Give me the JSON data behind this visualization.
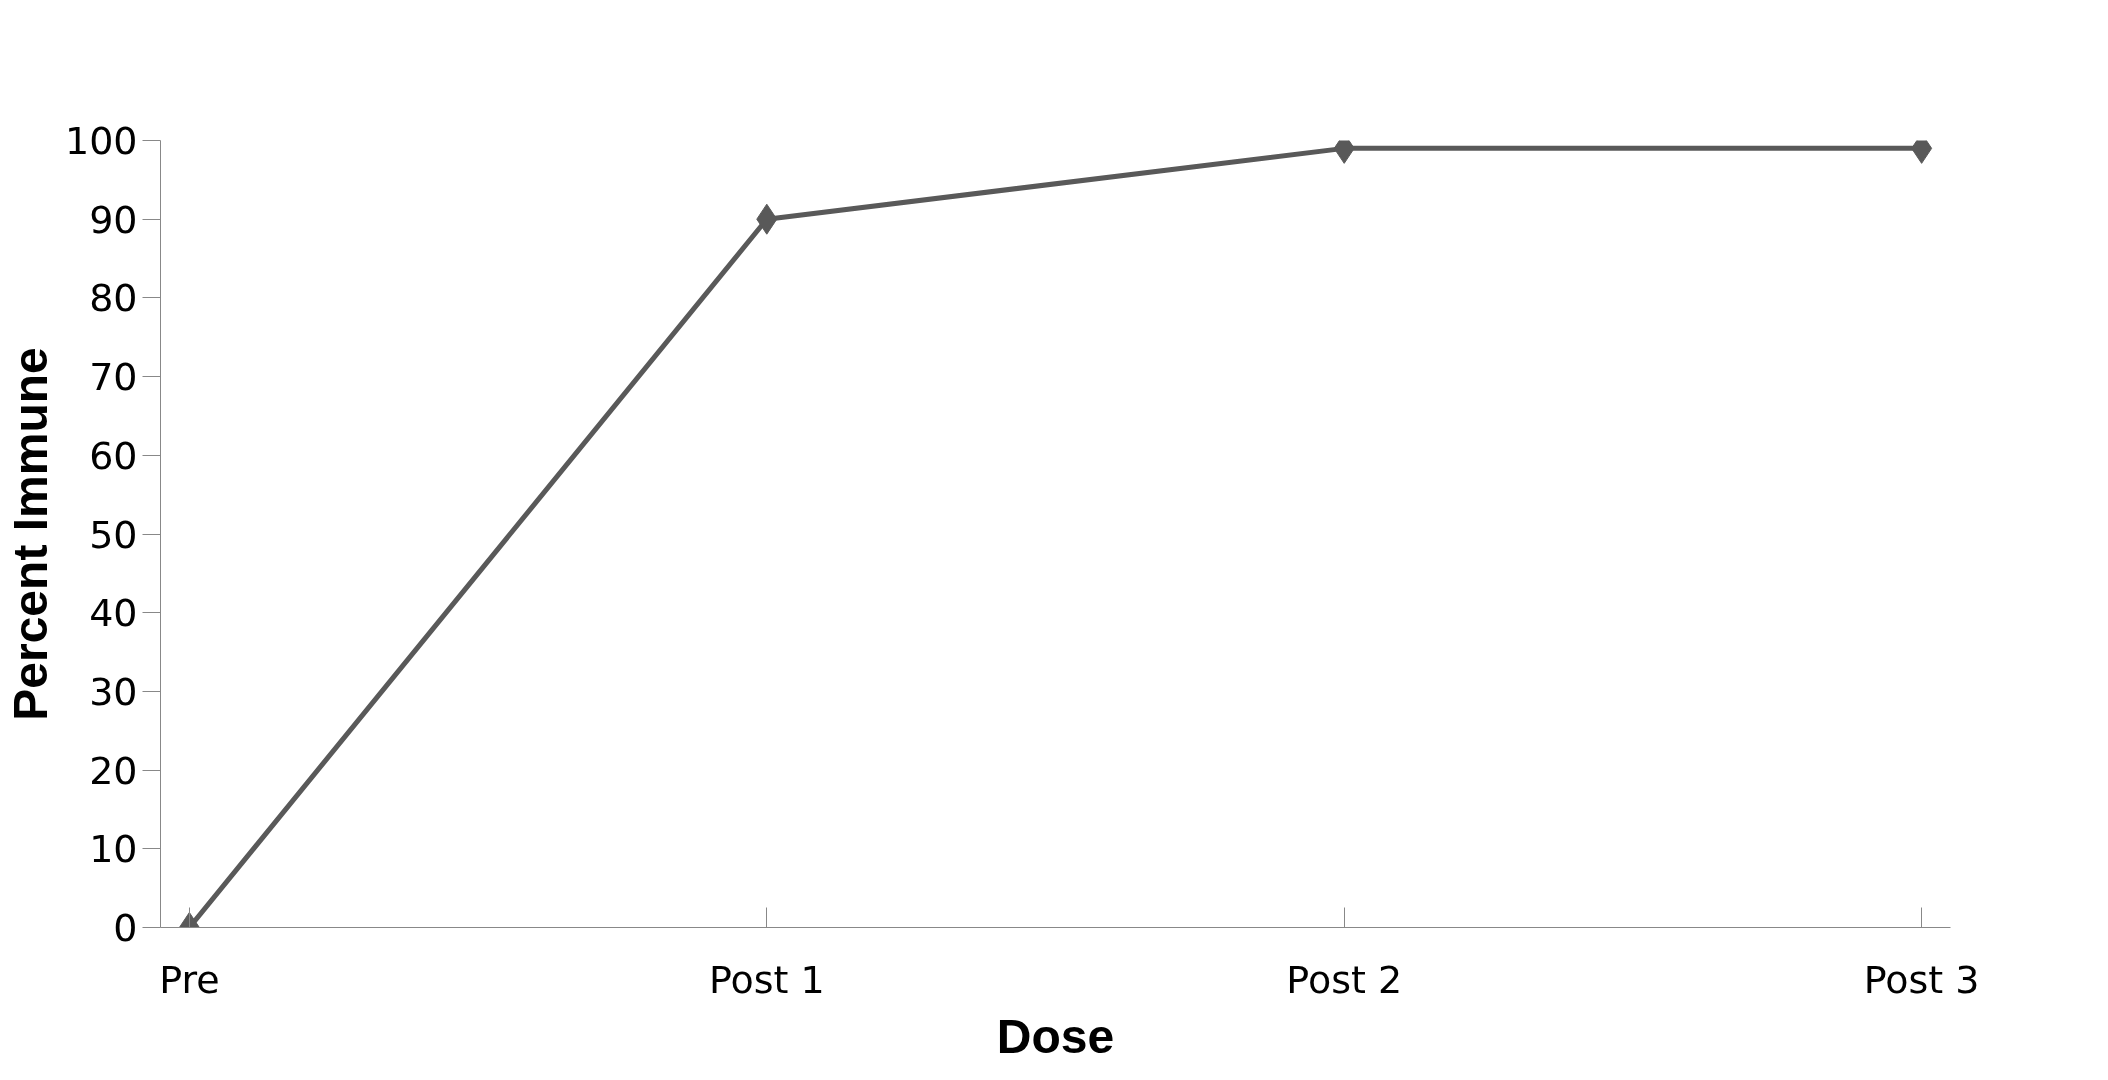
{
  "chart_data": {
    "type": "line",
    "xlabel": "Dose",
    "ylabel": "Percent Immune",
    "categories": [
      "Pre",
      "Post 1",
      "Post 2",
      "Post 3"
    ],
    "series": [
      {
        "color": "#595959",
        "values": [
          0,
          90,
          99,
          99
        ]
      }
    ],
    "ylim": [
      0,
      100
    ],
    "yticks": [
      0,
      10,
      20,
      30,
      40,
      50,
      60,
      70,
      80,
      90,
      100
    ],
    "grid": false,
    "marker": "diamond",
    "line_style": "solid"
  }
}
